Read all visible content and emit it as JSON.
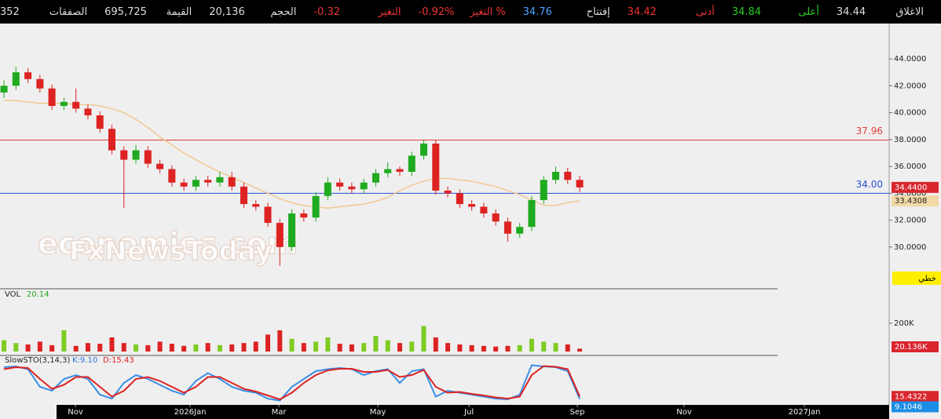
{
  "header": {
    "items": [
      {
        "label": "الاغلاق",
        "value": "34.44",
        "lc": "#ddd",
        "vc": "#ddd"
      },
      {
        "label": "أعلى",
        "value": "34.84",
        "lc": "#22cc22",
        "vc": "#22cc22"
      },
      {
        "label": "أدنى",
        "value": "34.42",
        "lc": "#ee3333",
        "vc": "#ee3333"
      },
      {
        "label": "إفتتاح",
        "value": "34.76",
        "lc": "#ddd",
        "vc": "#4aa3ff"
      },
      {
        "label": "التغير %",
        "value": "-0.92%",
        "lc": "#ee3333",
        "vc": "#ee3333"
      },
      {
        "label": "التغير",
        "value": "-0.32",
        "lc": "#ee3333",
        "vc": "#ee3333"
      },
      {
        "label": "الحجم",
        "value": "20,136",
        "lc": "#ddd",
        "vc": "#ddd"
      },
      {
        "label": "القيمة",
        "value": "695,725",
        "lc": "#ddd",
        "vc": "#ddd"
      },
      {
        "label": "الصفقات",
        "value": "352",
        "lc": "#ddd",
        "vc": "#ddd"
      }
    ]
  },
  "chart_data": [
    {
      "type": "candlestick",
      "up_color": "#1faa1f",
      "down_color": "#dd2222",
      "xlim": [
        -0.33,
        73.8
      ],
      "xticks": [
        {
          "value": 5.96,
          "label": "Nov"
        },
        {
          "value": 15.52,
          "label": "2026Jan"
        },
        {
          "value": 22.92,
          "label": "Mar"
        },
        {
          "value": 31.17,
          "label": "May"
        },
        {
          "value": 38.77,
          "label": "Jul"
        },
        {
          "value": 47.8,
          "label": "Sep"
        },
        {
          "value": 56.71,
          "label": "Nov"
        },
        {
          "value": 66.73,
          "label": "2027Jan"
        }
      ],
      "ylim": [
        26.9,
        46.63
      ],
      "yticks": [
        {
          "value": 30,
          "label": "30.0000"
        },
        {
          "value": 32,
          "label": "32.0000"
        },
        {
          "value": 34,
          "label": "34.0000"
        },
        {
          "value": 36,
          "label": "36.0000"
        },
        {
          "value": 38,
          "label": "38.0000"
        },
        {
          "value": 40,
          "label": "40.0000"
        },
        {
          "value": 42,
          "label": "42.0000"
        },
        {
          "value": 44,
          "label": "44.0000"
        }
      ],
      "open": [
        41.5,
        42.0,
        43.0,
        42.5,
        41.8,
        40.5,
        40.8,
        40.3,
        39.8,
        38.8,
        37.2,
        36.5,
        37.2,
        36.2,
        35.8,
        34.8,
        34.5,
        35.0,
        34.8,
        35.2,
        34.5,
        33.2,
        33.0,
        31.8,
        30.0,
        32.5,
        32.2,
        33.8,
        34.8,
        34.5,
        34.3,
        34.8,
        35.5,
        35.8,
        35.6,
        36.8,
        37.7,
        34.2,
        34.0,
        33.2,
        33.0,
        32.5,
        31.9,
        31.0,
        31.5,
        33.5,
        35.0,
        35.6,
        35.0
      ],
      "high": [
        42.4,
        43.4,
        43.3,
        42.8,
        42.1,
        41.1,
        41.8,
        40.6,
        40.1,
        39.1,
        37.5,
        37.6,
        37.5,
        36.5,
        36.1,
        35.1,
        35.3,
        35.3,
        35.6,
        35.6,
        34.8,
        33.5,
        33.3,
        32.1,
        32.8,
        32.8,
        34.1,
        35.2,
        35.1,
        34.8,
        35.1,
        35.8,
        36.3,
        36.0,
        37.1,
        38.0,
        38.0,
        34.5,
        34.3,
        33.5,
        33.3,
        32.8,
        32.2,
        31.8,
        33.8,
        35.3,
        36.0,
        35.9,
        35.3
      ],
      "low": [
        41.1,
        41.7,
        42.2,
        41.5,
        40.2,
        40.2,
        40.0,
        39.5,
        38.5,
        36.9,
        32.9,
        36.2,
        35.9,
        35.5,
        34.5,
        34.2,
        34.2,
        34.5,
        34.5,
        34.2,
        32.9,
        32.7,
        31.5,
        28.6,
        29.7,
        31.9,
        31.9,
        33.5,
        34.2,
        34.0,
        34.0,
        34.5,
        35.2,
        35.3,
        35.3,
        36.5,
        33.9,
        33.7,
        32.9,
        32.7,
        32.2,
        31.6,
        30.4,
        30.7,
        31.2,
        33.2,
        34.7,
        34.7,
        34.1
      ],
      "close": [
        42.0,
        43.0,
        42.5,
        41.8,
        40.5,
        40.8,
        40.3,
        39.8,
        38.8,
        37.2,
        36.5,
        37.2,
        36.2,
        35.8,
        34.8,
        34.5,
        35.0,
        34.8,
        35.2,
        34.5,
        33.2,
        33.0,
        31.8,
        30.0,
        32.5,
        32.2,
        33.8,
        34.8,
        34.5,
        34.3,
        34.8,
        35.5,
        35.8,
        35.6,
        36.8,
        37.7,
        34.2,
        34.0,
        33.2,
        33.0,
        32.5,
        31.9,
        31.0,
        31.5,
        33.5,
        35.0,
        35.6,
        35.0,
        34.44
      ],
      "last_close_label": "34.4400",
      "ma": {
        "color": "#f0c890",
        "values": [
          40.9,
          40.9,
          40.8,
          40.7,
          40.7,
          40.7,
          40.6,
          40.6,
          40.5,
          40.3,
          40.0,
          39.5,
          38.9,
          38.2,
          37.6,
          37.0,
          36.5,
          36.0,
          35.6,
          35.2,
          34.8,
          34.4,
          34.0,
          33.6,
          33.3,
          33.1,
          33.0,
          32.9,
          33.0,
          33.1,
          33.2,
          33.4,
          33.7,
          34.2,
          34.6,
          34.9,
          35.1,
          35.1,
          35.0,
          34.9,
          34.7,
          34.5,
          34.2,
          33.9,
          33.5,
          33.1,
          33.1,
          33.3,
          33.4308
        ]
      },
      "hlines": [
        {
          "value": 37.96,
          "color": "#e23b3b"
        },
        {
          "value": 34,
          "label": "34.00",
          "color": "#2a4fd6"
        }
      ],
      "watermark": [
        "economies.com",
        "FxNewsToday"
      ],
      "button": "خطي"
    },
    {
      "type": "bar",
      "title": "VOL",
      "last_value": 20.14,
      "ylim": [
        0,
        433
      ],
      "yticks": [
        {
          "value": 200,
          "label": "200K"
        }
      ],
      "values": [
        80,
        60,
        50,
        70,
        45,
        150,
        40,
        60,
        55,
        100,
        60,
        50,
        45,
        70,
        55,
        40,
        50,
        60,
        45,
        50,
        60,
        70,
        120,
        150,
        90,
        60,
        70,
        100,
        55,
        50,
        60,
        110,
        80,
        60,
        70,
        180,
        100,
        60,
        50,
        45,
        40,
        35,
        40,
        45,
        90,
        70,
        60,
        50,
        20.136
      ],
      "last_label": "20.136K"
    },
    {
      "type": "line",
      "title": "SlowSTO(3,14,3)",
      "k_label": "K:9.10",
      "d_label": "D:15.43",
      "ylim": [
        -4,
        116
      ],
      "series": [
        {
          "color": "#3a8ee6",
          "values": [
            90,
            92,
            85,
            40,
            30,
            60,
            70,
            60,
            20,
            10,
            50,
            70,
            60,
            45,
            30,
            20,
            55,
            75,
            60,
            40,
            30,
            25,
            10,
            5,
            40,
            60,
            80,
            85,
            88,
            85,
            70,
            80,
            85,
            50,
            80,
            85,
            15,
            30,
            25,
            20,
            15,
            10,
            8,
            20,
            95,
            92,
            90,
            80,
            9.1046
          ]
        },
        {
          "color": "#dd2222",
          "values": [
            85,
            90,
            88,
            60,
            35,
            45,
            65,
            65,
            40,
            15,
            30,
            60,
            65,
            55,
            40,
            25,
            40,
            65,
            65,
            50,
            35,
            28,
            18,
            8,
            25,
            50,
            70,
            82,
            86,
            86,
            78,
            78,
            83,
            65,
            70,
            83,
            40,
            25,
            27,
            22,
            18,
            13,
            10,
            15,
            70,
            93,
            91,
            85,
            15.4322
          ]
        }
      ]
    }
  ]
}
